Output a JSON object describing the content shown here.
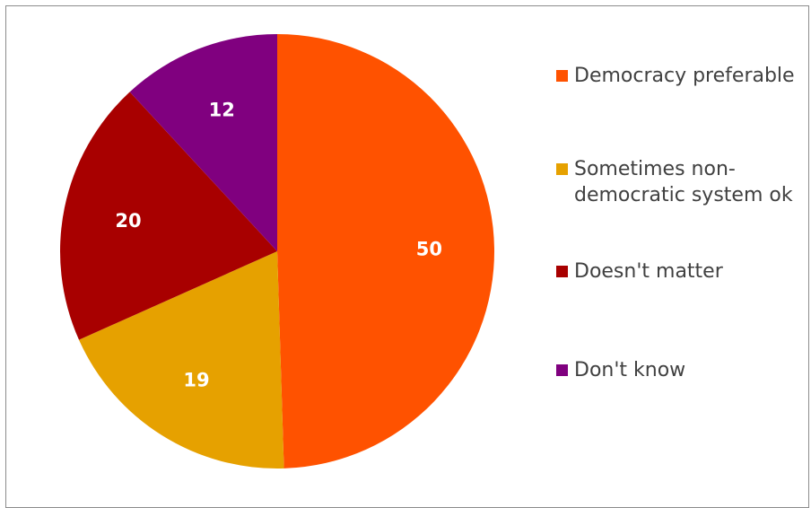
{
  "chart_data": {
    "type": "pie",
    "title": "",
    "start_angle_deg": 0,
    "direction": "clockwise",
    "legend_position": "right",
    "slices": [
      {
        "label": "Democracy preferable",
        "value": 50,
        "color": "#FF5200"
      },
      {
        "label": "Sometimes non-democratic system ok",
        "value": 19,
        "color": "#E6A100"
      },
      {
        "label": "Doesn't matter",
        "value": 20,
        "color": "#A80000"
      },
      {
        "label": "Don't know",
        "value": 12,
        "color": "#80007F"
      }
    ],
    "legend_labels": [
      "Democracy preferable",
      "Sometimes non-democratic system ok",
      "Doesn't matter",
      "Don't know"
    ]
  }
}
